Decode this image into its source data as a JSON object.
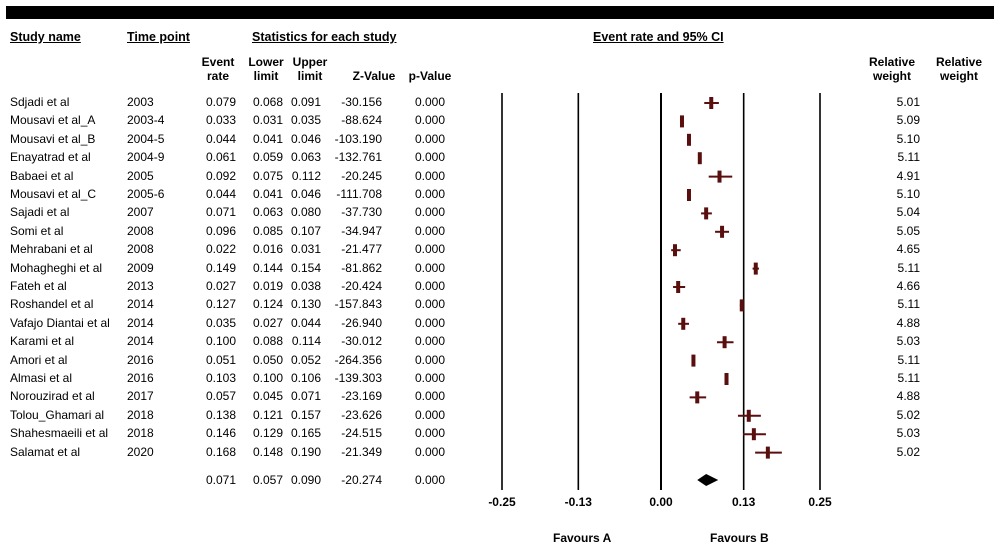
{
  "headers": {
    "study_name": "Study name",
    "time_point": "Time point",
    "statistics": "Statistics for each study",
    "event_rate_ci": "Event rate and 95% CI",
    "event_rate": "Event rate",
    "lower_limit": "Lower limit",
    "upper_limit": "Upper limit",
    "z_value": "Z-Value",
    "p_value": "p-Value",
    "relative_weight_1": "Relative weight",
    "relative_weight_2": "Relative weight"
  },
  "rows": [
    {
      "study": "Sdjadi et al",
      "time": "2003",
      "er": "0.079",
      "ll": "0.068",
      "ul": "0.091",
      "z": "-30.156",
      "p": "0.000",
      "w": "5.01"
    },
    {
      "study": "Mousavi et al_A",
      "time": "2003-4",
      "er": "0.033",
      "ll": "0.031",
      "ul": "0.035",
      "z": "-88.624",
      "p": "0.000",
      "w": "5.09"
    },
    {
      "study": "Mousavi et al_B",
      "time": "2004-5",
      "er": "0.044",
      "ll": "0.041",
      "ul": "0.046",
      "z": "-103.190",
      "p": "0.000",
      "w": "5.10"
    },
    {
      "study": "Enayatrad et al",
      "time": "2004-9",
      "er": "0.061",
      "ll": "0.059",
      "ul": "0.063",
      "z": "-132.761",
      "p": "0.000",
      "w": "5.11"
    },
    {
      "study": "Babaei et al",
      "time": "2005",
      "er": "0.092",
      "ll": "0.075",
      "ul": "0.112",
      "z": "-20.245",
      "p": "0.000",
      "w": "4.91"
    },
    {
      "study": "Mousavi et al_C",
      "time": "2005-6",
      "er": "0.044",
      "ll": "0.041",
      "ul": "0.046",
      "z": "-111.708",
      "p": "0.000",
      "w": "5.10"
    },
    {
      "study": "Sajadi et al",
      "time": "2007",
      "er": "0.071",
      "ll": "0.063",
      "ul": "0.080",
      "z": "-37.730",
      "p": "0.000",
      "w": "5.04"
    },
    {
      "study": "Somi et al",
      "time": "2008",
      "er": "0.096",
      "ll": "0.085",
      "ul": "0.107",
      "z": "-34.947",
      "p": "0.000",
      "w": "5.05"
    },
    {
      "study": "Mehrabani et al",
      "time": "2008",
      "er": "0.022",
      "ll": "0.016",
      "ul": "0.031",
      "z": "-21.477",
      "p": "0.000",
      "w": "4.65"
    },
    {
      "study": "Mohagheghi et al",
      "time": "2009",
      "er": "0.149",
      "ll": "0.144",
      "ul": "0.154",
      "z": "-81.862",
      "p": "0.000",
      "w": "5.11"
    },
    {
      "study": "Fateh et al",
      "time": "2013",
      "er": "0.027",
      "ll": "0.019",
      "ul": "0.038",
      "z": "-20.424",
      "p": "0.000",
      "w": "4.66"
    },
    {
      "study": "Roshandel et al",
      "time": "2014",
      "er": "0.127",
      "ll": "0.124",
      "ul": "0.130",
      "z": "-157.843",
      "p": "0.000",
      "w": "5.11"
    },
    {
      "study": "Vafajo Diantai et al",
      "time": "2014",
      "er": "0.035",
      "ll": "0.027",
      "ul": "0.044",
      "z": "-26.940",
      "p": "0.000",
      "w": "4.88"
    },
    {
      "study": "Karami et al",
      "time": "2014",
      "er": "0.100",
      "ll": "0.088",
      "ul": "0.114",
      "z": "-30.012",
      "p": "0.000",
      "w": "5.03"
    },
    {
      "study": "Amori et al",
      "time": "2016",
      "er": "0.051",
      "ll": "0.050",
      "ul": "0.052",
      "z": "-264.356",
      "p": "0.000",
      "w": "5.11"
    },
    {
      "study": "Almasi et al",
      "time": "2016",
      "er": "0.103",
      "ll": "0.100",
      "ul": "0.106",
      "z": "-139.303",
      "p": "0.000",
      "w": "5.11"
    },
    {
      "study": "Norouzirad et al",
      "time": "2017",
      "er": "0.057",
      "ll": "0.045",
      "ul": "0.071",
      "z": "-23.169",
      "p": "0.000",
      "w": "4.88"
    },
    {
      "study": "Tolou_Ghamari al",
      "time": "2018",
      "er": "0.138",
      "ll": "0.121",
      "ul": "0.157",
      "z": "-23.626",
      "p": "0.000",
      "w": "5.02"
    },
    {
      "study": "Shahesmaeili et al",
      "time": "2018",
      "er": "0.146",
      "ll": "0.129",
      "ul": "0.165",
      "z": "-24.515",
      "p": "0.000",
      "w": "5.03"
    },
    {
      "study": "Salamat et al",
      "time": "2020",
      "er": "0.168",
      "ll": "0.148",
      "ul": "0.190",
      "z": "-21.349",
      "p": "0.000",
      "w": "5.02"
    }
  ],
  "summary": {
    "er": "0.071",
    "ll": "0.057",
    "ul": "0.090",
    "z": "-20.274",
    "p": "0.000"
  },
  "favours_a": "Favours A",
  "favours_b": "Favours B",
  "colors": {
    "marker": "#5a0f0f",
    "summary": "#000000",
    "topbar": "#000000"
  },
  "chart_data": {
    "type": "forest",
    "xlim": [
      -0.25,
      0.25
    ],
    "ticks": [
      -0.25,
      -0.13,
      0.0,
      0.13,
      0.25
    ],
    "tick_labels": [
      "-0.25",
      "-0.13",
      "0.00",
      "0.13",
      "0.25"
    ],
    "points": [
      {
        "est": 0.079,
        "lo": 0.068,
        "hi": 0.091
      },
      {
        "est": 0.033,
        "lo": 0.031,
        "hi": 0.035
      },
      {
        "est": 0.044,
        "lo": 0.041,
        "hi": 0.046
      },
      {
        "est": 0.061,
        "lo": 0.059,
        "hi": 0.063
      },
      {
        "est": 0.092,
        "lo": 0.075,
        "hi": 0.112
      },
      {
        "est": 0.044,
        "lo": 0.041,
        "hi": 0.046
      },
      {
        "est": 0.071,
        "lo": 0.063,
        "hi": 0.08
      },
      {
        "est": 0.096,
        "lo": 0.085,
        "hi": 0.107
      },
      {
        "est": 0.022,
        "lo": 0.016,
        "hi": 0.031
      },
      {
        "est": 0.149,
        "lo": 0.144,
        "hi": 0.154
      },
      {
        "est": 0.027,
        "lo": 0.019,
        "hi": 0.038
      },
      {
        "est": 0.127,
        "lo": 0.124,
        "hi": 0.13
      },
      {
        "est": 0.035,
        "lo": 0.027,
        "hi": 0.044
      },
      {
        "est": 0.1,
        "lo": 0.088,
        "hi": 0.114
      },
      {
        "est": 0.051,
        "lo": 0.05,
        "hi": 0.052
      },
      {
        "est": 0.103,
        "lo": 0.1,
        "hi": 0.106
      },
      {
        "est": 0.057,
        "lo": 0.045,
        "hi": 0.071
      },
      {
        "est": 0.138,
        "lo": 0.121,
        "hi": 0.157
      },
      {
        "est": 0.146,
        "lo": 0.129,
        "hi": 0.165
      },
      {
        "est": 0.168,
        "lo": 0.148,
        "hi": 0.19
      }
    ],
    "summary": {
      "est": 0.071,
      "lo": 0.057,
      "hi": 0.09
    }
  }
}
